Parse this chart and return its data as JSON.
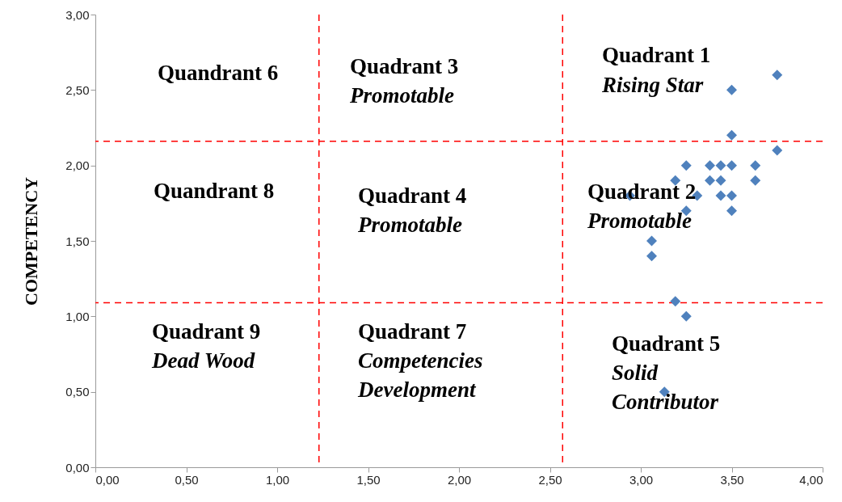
{
  "chart_data": {
    "type": "scatter",
    "ylabel": "COMPETENCY",
    "x": [
      3.75,
      3.5,
      3.5,
      3.75,
      3.25,
      3.38,
      3.44,
      3.5,
      3.63,
      3.19,
      3.38,
      3.44,
      3.63,
      2.94,
      3.31,
      3.44,
      3.5,
      3.25,
      3.5,
      3.06,
      3.06,
      3.19,
      3.25,
      3.13
    ],
    "series": [
      {
        "color": "#4f81bd",
        "values": [
          2.6,
          2.5,
          2.2,
          2.1,
          2.0,
          2.0,
          2.0,
          2.0,
          2.0,
          1.9,
          1.9,
          1.9,
          1.9,
          1.8,
          1.8,
          1.8,
          1.8,
          1.7,
          1.7,
          1.5,
          1.4,
          1.1,
          1.0,
          0.5
        ]
      }
    ],
    "marker": "diamond",
    "xlim": [
      0,
      4
    ],
    "ylim": [
      0,
      3
    ],
    "xticks": [
      {
        "value": 0,
        "label": "0,00"
      },
      {
        "value": 0.5,
        "label": "0,50"
      },
      {
        "value": 1,
        "label": "1,00"
      },
      {
        "value": 1.5,
        "label": "1,50"
      },
      {
        "value": 2,
        "label": "2,00"
      },
      {
        "value": 2.5,
        "label": "2,50"
      },
      {
        "value": 3,
        "label": "3,00"
      },
      {
        "value": 3.5,
        "label": "3,50"
      },
      {
        "value": 4,
        "label": "4,00"
      }
    ],
    "yticks": [
      {
        "value": 0,
        "label": "0,00"
      },
      {
        "value": 0.5,
        "label": "0,50"
      },
      {
        "value": 1,
        "label": "1,00"
      },
      {
        "value": 1.5,
        "label": "1,50"
      },
      {
        "value": 2,
        "label": "2,00"
      },
      {
        "value": 2.5,
        "label": "2,50"
      },
      {
        "value": 3,
        "label": "3,00"
      }
    ],
    "grid": false,
    "ref_lines": [
      {
        "axis": "x",
        "value": 1.23,
        "color": "#ff0000",
        "line_style": "dashed"
      },
      {
        "axis": "x",
        "value": 2.57,
        "color": "#ff0000",
        "line_style": "dashed"
      },
      {
        "axis": "y",
        "value": 2.16,
        "color": "#ff0000",
        "line_style": "dashed"
      },
      {
        "axis": "y",
        "value": 1.09,
        "color": "#ff0000",
        "line_style": "dashed"
      }
    ],
    "annotations": [
      "Quandrant 6",
      "Quadrant 3",
      "Promotable",
      "Quadrant 1",
      "Rising Star",
      "Quandrant 8",
      "Quadrant 4",
      "Promotable",
      "Quadrant 2",
      "Promotable",
      "Quadrant 9",
      "Dead Wood",
      "Quadrant 7",
      "Competencies Development",
      "Quadrant 5",
      "Solid Contributor"
    ]
  }
}
